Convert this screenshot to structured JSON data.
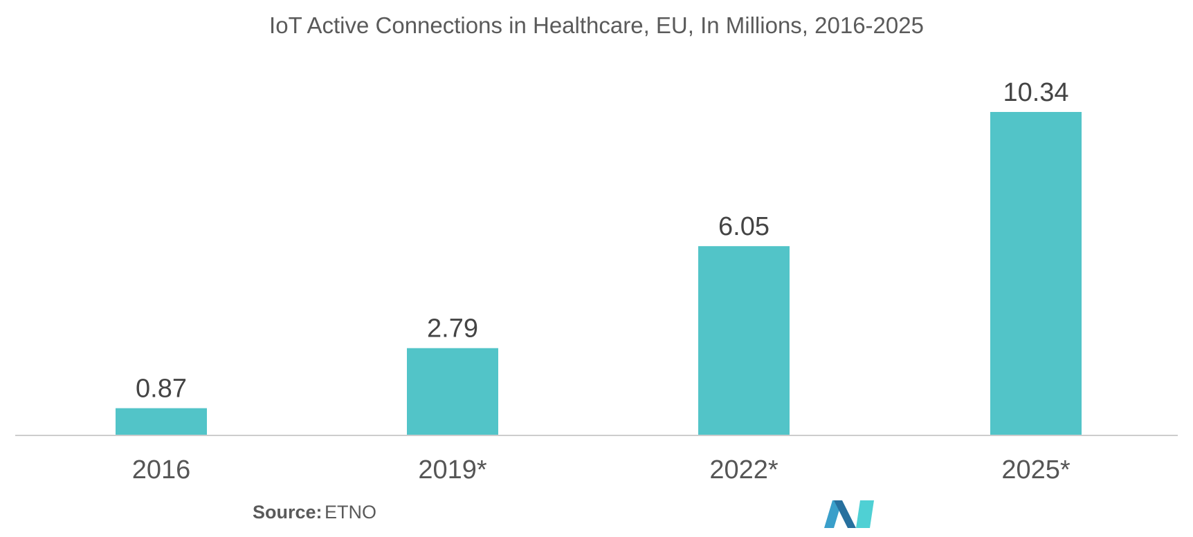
{
  "chart_data": {
    "type": "bar",
    "title": "IoT Active Connections in Healthcare, EU, In Millions, 2016-2025",
    "categories": [
      "2016",
      "2019*",
      "2022*",
      "2025*"
    ],
    "values": [
      0.87,
      2.79,
      6.05,
      10.34
    ],
    "value_labels": [
      "0.87",
      "2.79",
      "6.05",
      "10.34"
    ],
    "xlabel": "",
    "ylabel": "",
    "ylim": [
      0,
      10.34
    ],
    "grid": false,
    "bar_color": "#52c4c8",
    "axis_color": "#cccccc"
  },
  "source": {
    "label": "Source:",
    "value": "ETNO"
  },
  "logo": {
    "icon": "mordor-logo-icon",
    "colors": [
      "#3a9fca",
      "#27709e",
      "#4fd0d4"
    ]
  }
}
